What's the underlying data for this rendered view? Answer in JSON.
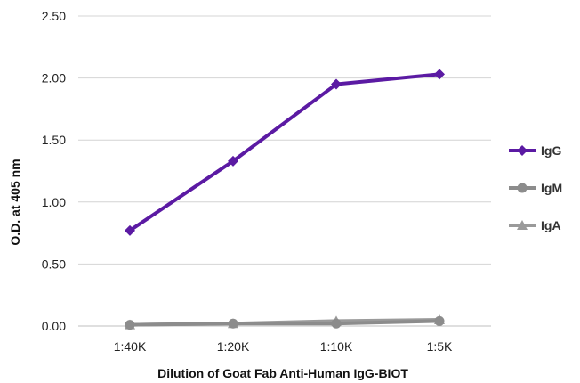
{
  "chart_data": {
    "type": "line",
    "title": "",
    "xlabel": "Dilution of Goat Fab Anti-Human IgG-BIOT",
    "ylabel": "O.D. at 405 nm",
    "categories": [
      "1:40K",
      "1:20K",
      "1:10K",
      "1:5K"
    ],
    "ylim": [
      0,
      2.5
    ],
    "yticks": [
      "0.00",
      "0.50",
      "1.00",
      "1.50",
      "2.00",
      "2.50"
    ],
    "grid": true,
    "legend_position": "right",
    "series": [
      {
        "name": "IgG",
        "color": "#5b1aa3",
        "marker": "diamond",
        "values": [
          0.77,
          1.33,
          1.95,
          2.03
        ]
      },
      {
        "name": "IgM",
        "color": "#8c8c8c",
        "marker": "circle",
        "values": [
          0.01,
          0.02,
          0.02,
          0.04
        ]
      },
      {
        "name": "IgA",
        "color": "#9a9a9a",
        "marker": "triangle",
        "values": [
          0.01,
          0.02,
          0.04,
          0.05
        ]
      }
    ]
  }
}
